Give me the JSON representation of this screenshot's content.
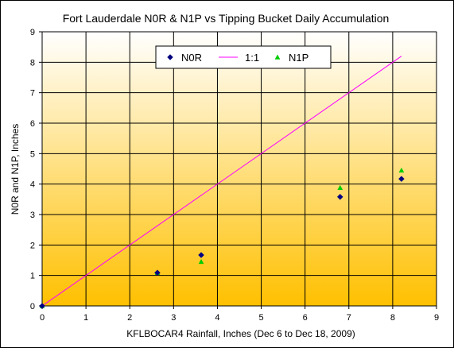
{
  "chart_data": {
    "type": "scatter",
    "title": "Fort Lauderdale N0R & N1P vs Tipping Bucket Daily Accumulation",
    "xlabel": "KFLBOCAR4 Rainfall, Inches (Dec 6 to Dec 18, 2009)",
    "ylabel": "N0R and N1P, Inches",
    "xlim": [
      0,
      9
    ],
    "ylim": [
      0,
      9
    ],
    "xticks": [
      "0",
      "1",
      "2",
      "3",
      "4",
      "5",
      "6",
      "7",
      "8",
      "9"
    ],
    "yticks": [
      "0",
      "1",
      "2",
      "3",
      "4",
      "5",
      "6",
      "7",
      "8",
      "9"
    ],
    "grid": true,
    "legend_position": "top-center",
    "background_gradient": [
      "#ffffff",
      "#ffc000"
    ],
    "series": [
      {
        "name": "N0R",
        "kind": "points",
        "marker": "diamond",
        "color": "#000080",
        "x": [
          0,
          2.63,
          3.63,
          6.8,
          8.2
        ],
        "y": [
          0,
          1.09,
          1.67,
          3.58,
          4.17
        ]
      },
      {
        "name": "1:1",
        "kind": "line",
        "color": "#ff00ff",
        "x": [
          0,
          8.2
        ],
        "y": [
          0,
          8.2
        ]
      },
      {
        "name": "N1P",
        "kind": "points",
        "marker": "triangle",
        "color": "#00cc00",
        "x": [
          0,
          2.63,
          3.63,
          6.8,
          8.2
        ],
        "y": [
          0,
          1.09,
          1.45,
          3.88,
          4.45
        ]
      }
    ]
  }
}
